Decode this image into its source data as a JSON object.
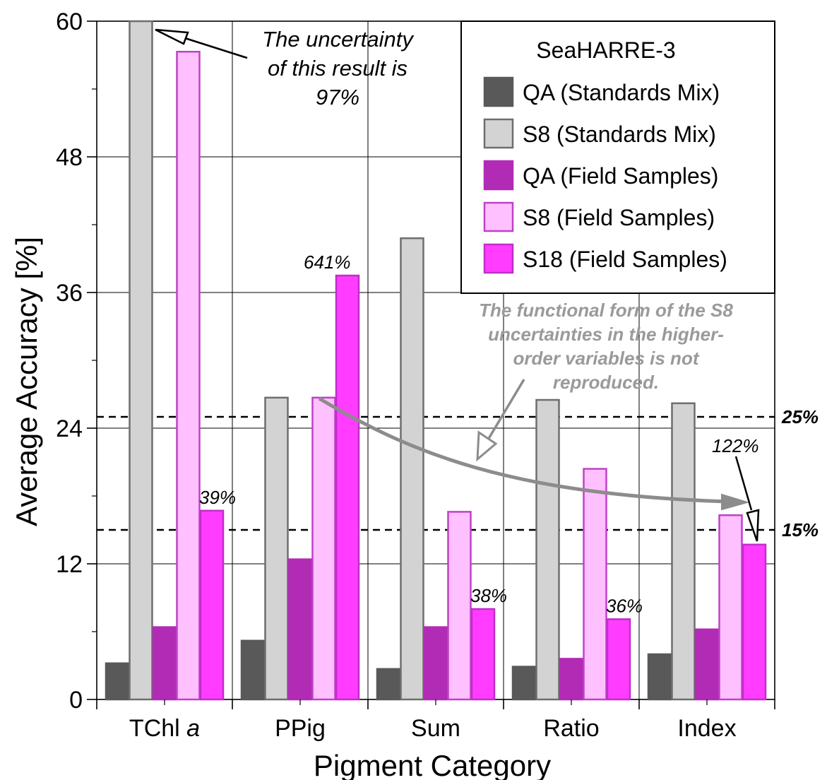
{
  "chart_data": {
    "type": "bar",
    "xlabel": "Pigment Category",
    "ylabel": "Average Accuracy [%]",
    "ylim": [
      0,
      60
    ],
    "yticks": [
      0,
      12,
      24,
      36,
      48,
      60
    ],
    "categories": [
      {
        "pre": "TChl ",
        "italic": "a"
      },
      {
        "pre": "PPig",
        "italic": ""
      },
      {
        "pre": "Sum",
        "italic": ""
      },
      {
        "pre": "Ratio",
        "italic": ""
      },
      {
        "pre": "Index",
        "italic": ""
      }
    ],
    "grid": true,
    "legend": {
      "title": "SeaHARRE-3",
      "placement": "top-right"
    },
    "series": [
      {
        "name": "QA (Standards Mix)",
        "fill": "#595959",
        "stroke": "#595959",
        "values": [
          3.2,
          5.2,
          2.7,
          2.9,
          4.0
        ]
      },
      {
        "name": "S8 (Standards Mix)",
        "fill": "#d3d3d3",
        "stroke": "#6e6e6e",
        "values": [
          60,
          26.7,
          40.8,
          26.5,
          26.2
        ]
      },
      {
        "name": "QA (Field Samples)",
        "fill": "#b22bb5",
        "stroke": "#b22bb5",
        "values": [
          6.4,
          12.4,
          6.4,
          3.6,
          6.2
        ]
      },
      {
        "name": "S8 (Field Samples)",
        "fill": "#ffc0ff",
        "stroke": "#c040c8",
        "values": [
          57.3,
          26.7,
          16.6,
          20.4,
          16.3
        ]
      },
      {
        "name": "S18 (Field Samples)",
        "fill": "#ff3cff",
        "stroke": "#c02ec8",
        "values": [
          16.7,
          37.5,
          8.0,
          7.1,
          13.7
        ]
      }
    ],
    "reference_lines": [
      {
        "value": 25,
        "label": "25%"
      },
      {
        "value": 15,
        "label": "15%"
      }
    ],
    "bar_labels": [
      {
        "category": 0,
        "series": 4,
        "text": "39%"
      },
      {
        "category": 1,
        "series": 4,
        "text": "641%"
      },
      {
        "category": 2,
        "series": 4,
        "text": "38%"
      },
      {
        "category": 3,
        "series": 4,
        "text": "36%"
      },
      {
        "category": 4,
        "series": 4,
        "text": "122%"
      }
    ],
    "annotations": {
      "uncertainty_lines": [
        "The uncertainty",
        "of this result is",
        "97%"
      ],
      "functional_form_lines": [
        "The functional form of the S8",
        "uncertainties in the higher-",
        "order variables is not",
        "reproduced."
      ]
    }
  },
  "colors": {
    "grid": "#000000",
    "arrow_grey": "#8c8c8c"
  }
}
